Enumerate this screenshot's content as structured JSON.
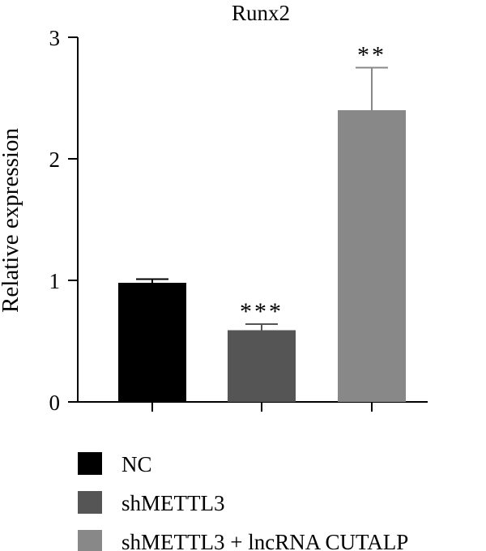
{
  "chart_data": {
    "type": "bar",
    "title": "Runx2",
    "ylabel": "Relative expression",
    "xlabel": "",
    "ylim": [
      0,
      3
    ],
    "yticks": [
      0,
      1,
      2,
      3
    ],
    "grid": false,
    "legend_position": "bottom",
    "categories": [
      "NC",
      "shMETTL3",
      "shMETTL3 + lncRNA CUTALP"
    ],
    "values": [
      0.98,
      0.59,
      2.4
    ],
    "errors": [
      0.03,
      0.05,
      0.35
    ],
    "significance": [
      "",
      "***",
      "**"
    ],
    "colors": [
      "#000000",
      "#555555",
      "#888888"
    ]
  }
}
